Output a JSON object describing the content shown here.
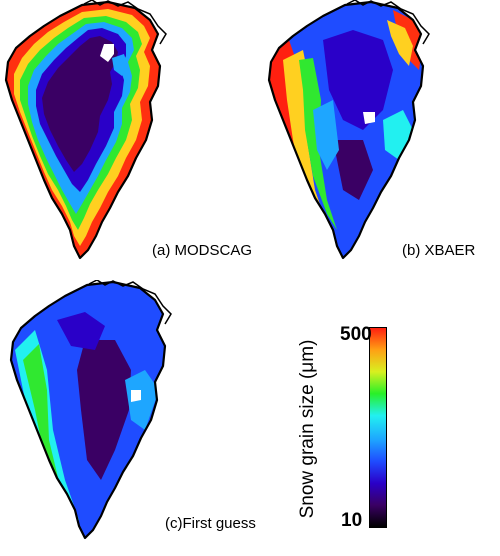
{
  "panels": [
    {
      "label": "(a) MODSCAG",
      "style": "modscag"
    },
    {
      "label": "(b) XBAER",
      "style": "xbaer"
    },
    {
      "label": "(c)First guess",
      "style": "firstguess"
    }
  ],
  "colorbar": {
    "title": "Snow grain size (μm)",
    "max_label": "500",
    "min_label": "10",
    "colors": [
      "#000000",
      "#3a0064",
      "#2a00c8",
      "#1f4cff",
      "#1ea6ff",
      "#22f0f0",
      "#28f028",
      "#d8f020",
      "#ffa014",
      "#ff2010"
    ]
  }
}
